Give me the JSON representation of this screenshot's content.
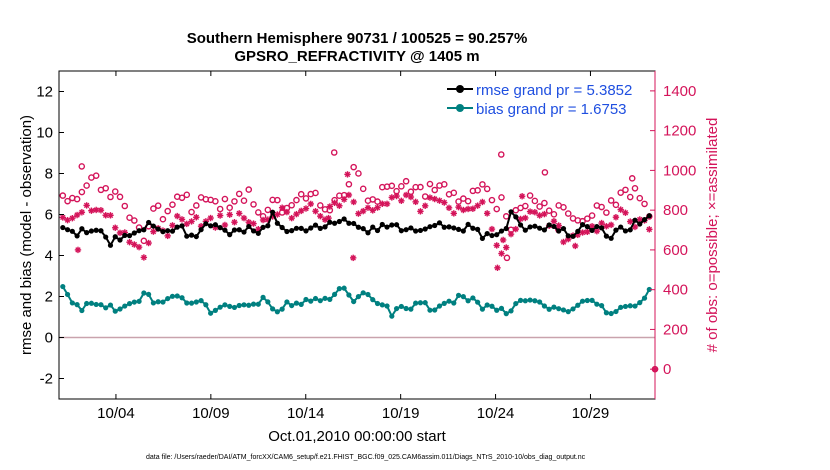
{
  "chart_data": {
    "type": "line",
    "title": "Southern Hemisphere 90731 / 100525 = 90.257%",
    "subtitle": "GPSRO_REFRACTIVITY @ 1405 m",
    "xlabel": "Oct.01,2010 00:00:00 start",
    "ylabel": "rmse and bias (model - observation)",
    "y2label": "# of obs: o=possible; ×=assimilated",
    "footnote": "data file: /Users/raeder/DAI/ATM_forcXX/CAM6_setup/f.e21.FHIST_BGC.f09_025.CAM6assim.011/Diags_NTrS_2010-10/obs_diag_output.nc",
    "xlim": [
      1.0,
      32.4
    ],
    "ylim": [
      -3,
      13
    ],
    "y2lim": [
      -150,
      1500
    ],
    "x_ticks": [
      4,
      9,
      14,
      19,
      24,
      29
    ],
    "x_tick_labels": [
      "10/04",
      "10/09",
      "10/14",
      "10/19",
      "10/24",
      "10/29"
    ],
    "y_ticks": [
      -2,
      0,
      2,
      4,
      6,
      8,
      10,
      12
    ],
    "y_tick_labels": [
      "-2",
      "0",
      "2",
      "4",
      "6",
      "8",
      "10",
      "12"
    ],
    "y2_ticks": [
      0,
      200,
      400,
      600,
      800,
      1000,
      1200,
      1400
    ],
    "y2_tick_labels": [
      "0",
      "200",
      "400",
      "600",
      "800",
      "1000",
      "1200",
      "1400"
    ],
    "legend": [
      {
        "label": "rmse grand pr = 5.3852",
        "color": "#000000",
        "text_color": "#1F4FE0",
        "marker": "circle-filled"
      },
      {
        "label": "bias grand pr = 1.6753",
        "color": "#008080",
        "text_color": "#1F4FE0",
        "marker": "circle-filled"
      }
    ],
    "colors": {
      "rmse": "#000000",
      "bias": "#008080",
      "obs": "#D4145A",
      "zero_line": "#C9A3AD",
      "axis_right": "#D4145A"
    },
    "rmse_keypoints": [
      [
        1.2,
        5.2
      ],
      [
        2.3,
        5.1
      ],
      [
        3.1,
        5.4
      ],
      [
        3.6,
        4.5
      ],
      [
        4.0,
        4.9
      ],
      [
        5.2,
        5.1
      ],
      [
        5.8,
        5.6
      ],
      [
        6.5,
        5.2
      ],
      [
        7.3,
        5.4
      ],
      [
        8.0,
        4.9
      ],
      [
        8.8,
        5.4
      ],
      [
        9.5,
        5.3
      ],
      [
        10.2,
        5.1
      ],
      [
        11.0,
        5.4
      ],
      [
        11.8,
        5.2
      ],
      [
        12.3,
        6.2
      ],
      [
        12.8,
        5.1
      ],
      [
        13.5,
        5.2
      ],
      [
        14.2,
        5.3
      ],
      [
        15.0,
        5.4
      ],
      [
        16.0,
        5.6
      ],
      [
        16.8,
        5.4
      ],
      [
        17.6,
        5.2
      ],
      [
        18.5,
        5.5
      ],
      [
        19.4,
        5.2
      ],
      [
        20.3,
        5.4
      ],
      [
        21.0,
        5.6
      ],
      [
        21.8,
        5.3
      ],
      [
        22.6,
        5.4
      ],
      [
        23.3,
        5.0
      ],
      [
        24.0,
        5.1
      ],
      [
        24.5,
        5.0
      ],
      [
        24.7,
        6.1
      ],
      [
        25.1,
        5.7
      ],
      [
        25.5,
        5.2
      ],
      [
        26.2,
        5.3
      ],
      [
        27.0,
        5.6
      ],
      [
        27.8,
        5.0
      ],
      [
        28.8,
        5.4
      ],
      [
        29.5,
        5.2
      ],
      [
        30.2,
        5.0
      ],
      [
        31.0,
        5.4
      ],
      [
        31.9,
        5.8
      ]
    ],
    "bias_keypoints": [
      [
        1.2,
        2.6
      ],
      [
        1.6,
        1.8
      ],
      [
        2.0,
        1.4
      ],
      [
        3.0,
        1.8
      ],
      [
        4.0,
        1.4
      ],
      [
        5.0,
        1.7
      ],
      [
        5.5,
        2.2
      ],
      [
        6.2,
        1.6
      ],
      [
        7.0,
        2.0
      ],
      [
        7.8,
        1.8
      ],
      [
        8.5,
        1.9
      ],
      [
        9.0,
        1.3
      ],
      [
        10.0,
        1.5
      ],
      [
        11.0,
        1.6
      ],
      [
        11.8,
        1.8
      ],
      [
        12.5,
        1.4
      ],
      [
        13.0,
        1.6
      ],
      [
        13.8,
        1.8
      ],
      [
        14.5,
        1.9
      ],
      [
        15.2,
        2.0
      ],
      [
        16.0,
        2.3
      ],
      [
        16.6,
        1.8
      ],
      [
        17.2,
        2.1
      ],
      [
        18.0,
        1.6
      ],
      [
        18.5,
        1.2
      ],
      [
        19.2,
        1.4
      ],
      [
        20.0,
        1.6
      ],
      [
        21.0,
        1.4
      ],
      [
        21.6,
        1.8
      ],
      [
        22.4,
        2.0
      ],
      [
        23.3,
        1.5
      ],
      [
        24.0,
        1.4
      ],
      [
        24.5,
        1.2
      ],
      [
        25.2,
        1.7
      ],
      [
        26.0,
        1.8
      ],
      [
        26.8,
        1.4
      ],
      [
        27.6,
        1.3
      ],
      [
        28.4,
        1.6
      ],
      [
        29.2,
        1.8
      ],
      [
        30.0,
        1.2
      ],
      [
        30.8,
        1.4
      ],
      [
        31.5,
        1.6
      ],
      [
        32.0,
        2.2
      ]
    ],
    "possible_keypoints": [
      [
        1.2,
        880
      ],
      [
        2.0,
        880
      ],
      [
        2.5,
        920
      ],
      [
        3.0,
        950
      ],
      [
        3.5,
        910
      ],
      [
        4.2,
        880
      ],
      [
        5.0,
        720
      ],
      [
        5.6,
        640
      ],
      [
        6.0,
        800
      ],
      [
        6.8,
        760
      ],
      [
        7.3,
        920
      ],
      [
        8.0,
        800
      ],
      [
        8.8,
        860
      ],
      [
        9.5,
        820
      ],
      [
        10.2,
        840
      ],
      [
        11.0,
        880
      ],
      [
        11.8,
        760
      ],
      [
        12.4,
        850
      ],
      [
        13.0,
        800
      ],
      [
        13.7,
        880
      ],
      [
        14.3,
        900
      ],
      [
        15.0,
        800
      ],
      [
        15.8,
        860
      ],
      [
        16.6,
        1000
      ],
      [
        17.3,
        840
      ],
      [
        18.0,
        880
      ],
      [
        18.8,
        930
      ],
      [
        19.6,
        920
      ],
      [
        20.2,
        880
      ],
      [
        21.0,
        950
      ],
      [
        21.8,
        880
      ],
      [
        22.5,
        820
      ],
      [
        23.2,
        940
      ],
      [
        23.8,
        830
      ],
      [
        24.4,
        840
      ],
      [
        24.8,
        720
      ],
      [
        25.3,
        820
      ],
      [
        26.0,
        860
      ],
      [
        26.8,
        820
      ],
      [
        27.5,
        800
      ],
      [
        28.3,
        720
      ],
      [
        29.0,
        780
      ],
      [
        29.8,
        820
      ],
      [
        30.5,
        860
      ],
      [
        31.2,
        900
      ],
      [
        31.6,
        840
      ],
      [
        32.0,
        800
      ]
    ],
    "assimilated_keypoints": [
      [
        1.2,
        760
      ],
      [
        2.0,
        790
      ],
      [
        2.6,
        820
      ],
      [
        3.2,
        800
      ],
      [
        3.6,
        770
      ],
      [
        4.2,
        710
      ],
      [
        4.8,
        660
      ],
      [
        5.2,
        610
      ],
      [
        5.6,
        580
      ],
      [
        6.0,
        720
      ],
      [
        6.6,
        680
      ],
      [
        7.2,
        760
      ],
      [
        8.0,
        760
      ],
      [
        8.6,
        720
      ],
      [
        9.3,
        740
      ],
      [
        10.0,
        760
      ],
      [
        10.6,
        780
      ],
      [
        11.2,
        740
      ],
      [
        11.8,
        720
      ],
      [
        12.4,
        800
      ],
      [
        13.0,
        780
      ],
      [
        13.6,
        800
      ],
      [
        14.2,
        820
      ],
      [
        14.8,
        760
      ],
      [
        15.4,
        800
      ],
      [
        15.8,
        840
      ],
      [
        16.4,
        880
      ],
      [
        16.8,
        760
      ],
      [
        17.3,
        800
      ],
      [
        18.0,
        820
      ],
      [
        18.6,
        850
      ],
      [
        19.3,
        880
      ],
      [
        20.0,
        820
      ],
      [
        20.8,
        860
      ],
      [
        21.6,
        780
      ],
      [
        22.3,
        800
      ],
      [
        23.0,
        840
      ],
      [
        23.6,
        800
      ],
      [
        24.2,
        600
      ],
      [
        24.6,
        640
      ],
      [
        25.2,
        760
      ],
      [
        26.0,
        780
      ],
      [
        26.6,
        770
      ],
      [
        27.2,
        720
      ],
      [
        27.8,
        640
      ],
      [
        28.6,
        700
      ],
      [
        29.4,
        720
      ],
      [
        30.2,
        760
      ],
      [
        30.8,
        780
      ],
      [
        31.4,
        740
      ],
      [
        32.0,
        720
      ]
    ],
    "possible_outliers": [
      [
        2.2,
        1020
      ],
      [
        15.5,
        1090
      ],
      [
        24.3,
        1080
      ],
      [
        24.6,
        560
      ],
      [
        26.6,
        990
      ],
      [
        31.2,
        960
      ]
    ],
    "assimilated_outliers": [
      [
        2.0,
        600
      ],
      [
        15.2,
        760
      ],
      [
        16.2,
        980
      ],
      [
        16.5,
        560
      ],
      [
        24.1,
        510
      ],
      [
        24.4,
        650
      ],
      [
        25.4,
        870
      ],
      [
        27.3,
        700
      ],
      [
        28.2,
        620
      ]
    ],
    "final_point": {
      "x": 32.4,
      "count": 0,
      "markers": [
        "possible",
        "assimilated"
      ]
    },
    "n_points": 124
  }
}
